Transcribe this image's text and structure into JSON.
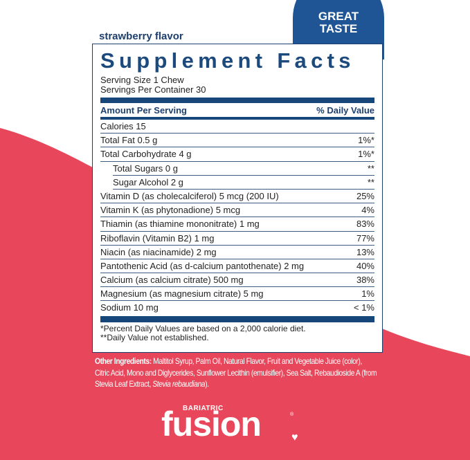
{
  "colors": {
    "navy": "#1d3f6e",
    "pink": "#e8465a",
    "badge": "#1f5594"
  },
  "badge": {
    "line1": "GREAT",
    "line2": "TASTE"
  },
  "flavor": "strawberry flavor",
  "facts": {
    "title": "Supplement Facts",
    "serving_size": "Serving Size 1 Chew",
    "servings_per_container": "Servings Per Container 30",
    "header_left": "Amount Per Serving",
    "header_right": "% Daily Value",
    "rows": [
      {
        "name": "Calories 15",
        "dv": ""
      },
      {
        "name": "Total Fat 0.5 g",
        "dv": "1%*"
      },
      {
        "name": "Total Carbohydrate 4 g",
        "dv": "1%*"
      },
      {
        "name": "Total Sugars 0 g",
        "dv": "**"
      },
      {
        "name": "Sugar Alcohol 2 g",
        "dv": "**"
      },
      {
        "name": "Vitamin D (as cholecalciferol) 5 mcg (200 IU)",
        "dv": "25%"
      },
      {
        "name": "Vitamin K (as phytonadione) 5 mcg",
        "dv": "4%"
      },
      {
        "name": "Thiamin (as thiamine mononitrate) 1 mg",
        "dv": "83%"
      },
      {
        "name": "Riboflavin (Vitamin B2) 1 mg",
        "dv": "77%"
      },
      {
        "name": "Niacin (as niacinamide) 2 mg",
        "dv": "13%"
      },
      {
        "name": "Pantothenic Acid (as d-calcium pantothenate) 2 mg",
        "dv": "40%"
      },
      {
        "name": "Calcium (as calcium citrate) 500 mg",
        "dv": "38%"
      },
      {
        "name": "Magnesium (as magnesium citrate) 5 mg",
        "dv": "1%"
      },
      {
        "name": "Sodium 10 mg",
        "dv": "< 1%"
      }
    ],
    "footnote1": "*Percent Daily Values are based on a 2,000 calorie diet.",
    "footnote2": "**Daily Value not established."
  },
  "ingredients": {
    "label": "Other Ingredients:",
    "text": " Maltitol Syrup, Palm Oil, Natural Flavor, Fruit and Vegetable Juice (color), Citric Acid, Mono and Diglycerides, Sunflower Lecithin (emulsifier), Sea Salt, Rebaudioside A (from Stevia Leaf Extract, ",
    "italic": "Stevia rebaudiana",
    "end": ")."
  },
  "logo": {
    "small": "BARIATRIC",
    "big": "fusion",
    "reg": "®"
  }
}
